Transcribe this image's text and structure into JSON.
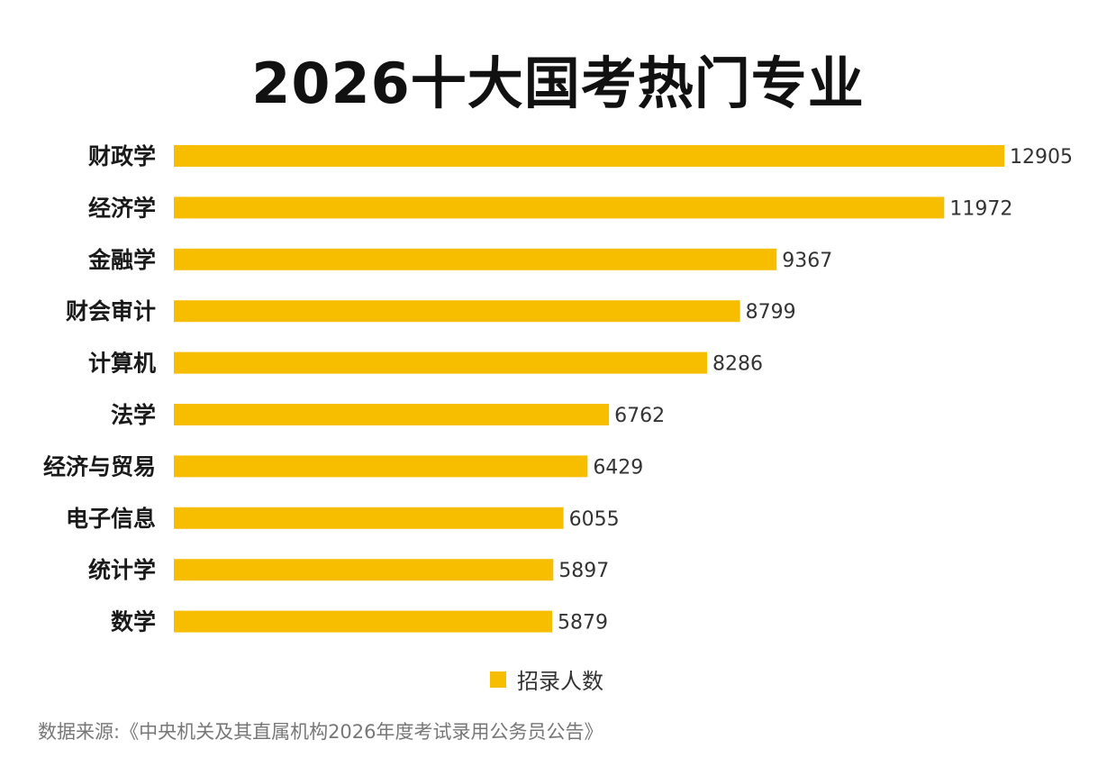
{
  "chart_data": {
    "type": "bar",
    "orientation": "horizontal",
    "title": "2026十大国考热门专业",
    "categories": [
      "财政学",
      "经济学",
      "金融学",
      "财会审计",
      "计算机",
      "法学",
      "经济与贸易",
      "电子信息",
      "统计学",
      "数学"
    ],
    "values": [
      12905,
      11972,
      9367,
      8799,
      8286,
      6762,
      6429,
      6055,
      5897,
      5879
    ],
    "value_labels": [
      "12905",
      "11972",
      "9367",
      "8799",
      "8286",
      "6762",
      "6429",
      "6055",
      "5897",
      "5879"
    ],
    "series_name": "招录人数",
    "xlim": [
      0,
      12905
    ],
    "grid": false,
    "legend_position": "bottom-center",
    "bar_color": "#F7BE00"
  },
  "source_note": "数据来源:《中央机关及其直属机构2026年度考试录用公务员公告》"
}
